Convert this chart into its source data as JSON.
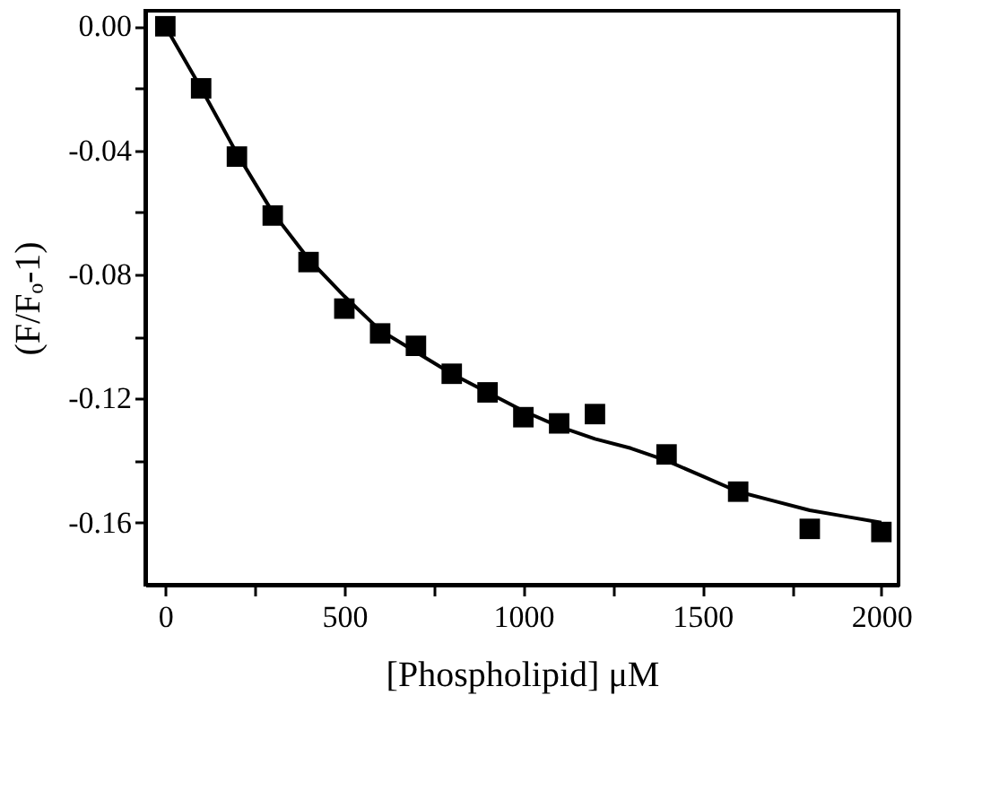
{
  "chart_data": {
    "type": "scatter",
    "xlabel": "[Phospholipid] μM",
    "ylabel": "(F/Fₒ-1)",
    "xlim": [
      -56,
      2048
    ],
    "ylim": [
      -0.18,
      0.005
    ],
    "xticks": [
      0,
      {
        "value": 250,
        "label": null
      },
      500,
      {
        "value": 750,
        "label": null
      },
      1000,
      {
        "value": 1250,
        "label": null
      },
      1500,
      {
        "value": 1750,
        "label": null
      },
      2000
    ],
    "yticks": [
      {
        "value": 0,
        "label": "0.00"
      },
      {
        "value": -0.02,
        "label": null
      },
      -0.04,
      {
        "value": -0.06,
        "label": null
      },
      -0.08,
      {
        "value": -0.1,
        "label": null
      },
      -0.12,
      {
        "value": -0.14,
        "label": null
      },
      -0.16
    ],
    "series": [
      {
        "color": "#000000",
        "marker": "square",
        "x": [
          0,
          100,
          200,
          300,
          400,
          500,
          600,
          700,
          800,
          900,
          1000,
          1100,
          1200,
          1400,
          1600,
          1800,
          2000
        ],
        "values": [
          0.0,
          -0.02,
          -0.042,
          -0.061,
          -0.076,
          -0.091,
          -0.099,
          -0.103,
          -0.112,
          -0.118,
          -0.126,
          -0.128,
          -0.125,
          -0.138,
          -0.15,
          -0.162,
          -0.163
        ]
      },
      {
        "type": "line",
        "color": "#000000",
        "marker": "none",
        "line_style": "solid",
        "x": [
          0,
          100,
          200,
          300,
          400,
          500,
          600,
          700,
          800,
          900,
          1000,
          1100,
          1200,
          1300,
          1400,
          1500,
          1600,
          1700,
          1800,
          1900,
          2000
        ],
        "values": [
          0.0,
          -0.02,
          -0.041,
          -0.06,
          -0.075,
          -0.087,
          -0.098,
          -0.105,
          -0.112,
          -0.118,
          -0.124,
          -0.129,
          -0.133,
          -0.136,
          -0.14,
          -0.145,
          -0.15,
          -0.153,
          -0.156,
          -0.158,
          -0.16
        ]
      }
    ]
  }
}
